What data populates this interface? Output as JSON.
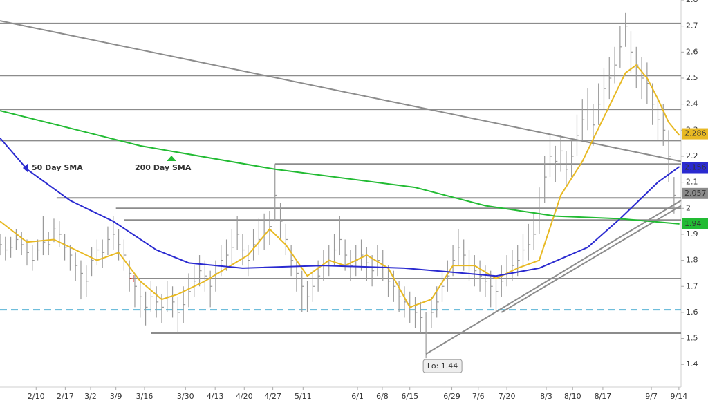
{
  "chart_data": {
    "type": "ohlc",
    "xlim": [
      0,
      126.3
    ],
    "ylim": [
      1.313,
      2.8
    ],
    "xticks": [
      {
        "value": 6.7,
        "label": "2/10"
      },
      {
        "value": 12.1,
        "label": "2/17"
      },
      {
        "value": 16.8,
        "label": "3/2"
      },
      {
        "value": 21.5,
        "label": "3/9"
      },
      {
        "value": 26.8,
        "label": "3/16"
      },
      {
        "value": 34.4,
        "label": "3/30"
      },
      {
        "value": 39.9,
        "label": "4/13"
      },
      {
        "value": 45.3,
        "label": "4/20"
      },
      {
        "value": 50.6,
        "label": "4/27"
      },
      {
        "value": 56.2,
        "label": "5/11"
      },
      {
        "value": 66.3,
        "label": "6/1"
      },
      {
        "value": 70.9,
        "label": "6/8"
      },
      {
        "value": 76,
        "label": "6/15"
      },
      {
        "value": 83.8,
        "label": "6/29"
      },
      {
        "value": 88.7,
        "label": "7/6"
      },
      {
        "value": 94,
        "label": "7/20"
      },
      {
        "value": 101.3,
        "label": "8/3"
      },
      {
        "value": 106.2,
        "label": "8/10"
      },
      {
        "value": 111.8,
        "label": "8/17"
      },
      {
        "value": 120.8,
        "label": "9/7"
      },
      {
        "value": 125.9,
        "label": "9/14"
      }
    ],
    "yticks": [
      1.4,
      1.5,
      1.6,
      1.7,
      1.8,
      1.9,
      2,
      2.1,
      2.2,
      2.3,
      2.4,
      2.5,
      2.6,
      2.7,
      2.8
    ],
    "ohlc": {
      "color": "#9a9a9a",
      "high": [
        1.9,
        1.89,
        1.89,
        1.92,
        1.91,
        1.88,
        1.86,
        1.88,
        1.97,
        1.91,
        1.96,
        1.95,
        1.9,
        1.86,
        1.83,
        1.8,
        1.78,
        1.85,
        1.88,
        1.88,
        1.93,
        1.97,
        1.92,
        1.88,
        1.8,
        1.75,
        1.72,
        1.68,
        1.72,
        1.7,
        1.67,
        1.72,
        1.7,
        1.66,
        1.7,
        1.75,
        1.78,
        1.82,
        1.8,
        1.76,
        1.8,
        1.86,
        1.88,
        1.92,
        1.97,
        1.9,
        1.86,
        1.92,
        1.96,
        1.98,
        1.99,
        2.17,
        2.02,
        1.94,
        1.86,
        1.8,
        1.76,
        1.72,
        1.76,
        1.8,
        1.84,
        1.86,
        1.9,
        1.97,
        1.88,
        1.84,
        1.86,
        1.88,
        1.85,
        1.82,
        1.86,
        1.84,
        1.78,
        1.76,
        1.72,
        1.7,
        1.68,
        1.66,
        1.64,
        1.6,
        1.66,
        1.7,
        1.76,
        1.8,
        1.86,
        1.92,
        1.88,
        1.84,
        1.82,
        1.8,
        1.78,
        1.76,
        1.74,
        1.78,
        1.82,
        1.84,
        1.86,
        1.9,
        1.94,
        1.98,
        2.08,
        2.2,
        2.28,
        2.24,
        2.28,
        2.22,
        2.26,
        2.36,
        2.42,
        2.46,
        2.4,
        2.48,
        2.54,
        2.58,
        2.62,
        2.7,
        2.75,
        2.68,
        2.62,
        2.58,
        2.56,
        2.48,
        2.42,
        2.4,
        2.3,
        2.12
      ],
      "low": [
        1.82,
        1.8,
        1.81,
        1.84,
        1.82,
        1.78,
        1.76,
        1.8,
        1.82,
        1.82,
        1.87,
        1.85,
        1.8,
        1.76,
        1.72,
        1.65,
        1.66,
        1.74,
        1.78,
        1.77,
        1.82,
        1.84,
        1.8,
        1.76,
        1.68,
        1.62,
        1.58,
        1.55,
        1.6,
        1.58,
        1.56,
        1.6,
        1.58,
        1.52,
        1.56,
        1.62,
        1.66,
        1.7,
        1.68,
        1.62,
        1.68,
        1.74,
        1.76,
        1.78,
        1.84,
        1.78,
        1.74,
        1.8,
        1.82,
        1.84,
        1.86,
        1.95,
        1.88,
        1.82,
        1.74,
        1.68,
        1.6,
        1.6,
        1.64,
        1.68,
        1.72,
        1.74,
        1.78,
        1.82,
        1.76,
        1.72,
        1.74,
        1.76,
        1.72,
        1.7,
        1.74,
        1.72,
        1.66,
        1.64,
        1.6,
        1.58,
        1.56,
        1.54,
        1.52,
        1.44,
        1.54,
        1.58,
        1.64,
        1.68,
        1.74,
        1.78,
        1.76,
        1.72,
        1.7,
        1.68,
        1.66,
        1.62,
        1.6,
        1.66,
        1.7,
        1.72,
        1.74,
        1.78,
        1.8,
        1.84,
        1.9,
        2.02,
        2.12,
        2.1,
        2.14,
        2.08,
        2.12,
        2.2,
        2.26,
        2.3,
        2.24,
        2.32,
        2.38,
        2.42,
        2.48,
        2.54,
        2.62,
        2.52,
        2.46,
        2.42,
        2.4,
        2.32,
        2.26,
        2.24,
        2.1,
        1.98
      ],
      "close": [
        1.86,
        1.84,
        1.85,
        1.88,
        1.86,
        1.83,
        1.8,
        1.84,
        1.87,
        1.86,
        1.92,
        1.9,
        1.85,
        1.82,
        1.78,
        1.75,
        1.72,
        1.8,
        1.84,
        1.83,
        1.88,
        1.9,
        1.86,
        1.82,
        1.75,
        1.7,
        1.66,
        1.62,
        1.66,
        1.64,
        1.62,
        1.66,
        1.64,
        1.6,
        1.63,
        1.68,
        1.72,
        1.76,
        1.74,
        1.7,
        1.75,
        1.8,
        1.82,
        1.85,
        1.9,
        1.84,
        1.8,
        1.86,
        1.88,
        1.9,
        1.93,
        2.05,
        1.95,
        1.88,
        1.8,
        1.75,
        1.7,
        1.66,
        1.7,
        1.74,
        1.78,
        1.8,
        1.84,
        1.88,
        1.82,
        1.78,
        1.8,
        1.82,
        1.79,
        1.76,
        1.8,
        1.78,
        1.72,
        1.7,
        1.66,
        1.64,
        1.62,
        1.6,
        1.58,
        1.52,
        1.6,
        1.64,
        1.7,
        1.74,
        1.8,
        1.85,
        1.82,
        1.78,
        1.76,
        1.74,
        1.72,
        1.7,
        1.68,
        1.72,
        1.75,
        1.78,
        1.8,
        1.84,
        1.86,
        1.9,
        1.98,
        2.12,
        2.2,
        2.18,
        2.22,
        2.15,
        2.2,
        2.28,
        2.34,
        2.38,
        2.32,
        2.4,
        2.46,
        2.5,
        2.55,
        2.62,
        2.7,
        2.6,
        2.55,
        2.5,
        2.48,
        2.4,
        2.34,
        2.3,
        2.2,
        2.05
      ]
    },
    "series": [
      {
        "color": "#e8b923",
        "x": [
          0,
          5,
          10,
          14,
          18,
          22,
          26,
          30,
          33,
          38,
          42,
          46,
          50,
          53,
          57,
          61,
          64,
          68,
          72,
          76,
          80,
          84,
          88,
          92,
          96,
          100,
          104,
          108,
          112,
          116,
          118,
          120,
          122,
          124,
          126
        ],
        "values": [
          1.95,
          1.87,
          1.88,
          1.84,
          1.8,
          1.83,
          1.72,
          1.65,
          1.67,
          1.72,
          1.77,
          1.82,
          1.92,
          1.86,
          1.74,
          1.8,
          1.78,
          1.82,
          1.77,
          1.62,
          1.65,
          1.78,
          1.78,
          1.73,
          1.77,
          1.8,
          2.05,
          2.18,
          2.35,
          2.52,
          2.55,
          2.5,
          2.42,
          2.33,
          2.28
        ]
      },
      {
        "name": "50 Day SMA",
        "color": "#2a2ad0",
        "x": [
          0,
          5,
          13,
          21,
          29,
          35,
          45,
          60,
          75,
          92,
          100,
          109,
          115,
          122,
          126
        ],
        "values": [
          2.27,
          2.15,
          2.03,
          1.95,
          1.84,
          1.79,
          1.77,
          1.78,
          1.77,
          1.74,
          1.77,
          1.85,
          1.96,
          2.1,
          2.16
        ]
      },
      {
        "name": "200 Day SMA",
        "color": "#22bb33",
        "x": [
          0,
          26,
          51,
          77,
          90,
          103,
          115,
          126
        ],
        "values": [
          2.375,
          2.24,
          2.15,
          2.08,
          2.01,
          1.97,
          1.96,
          1.94
        ]
      }
    ],
    "levels": [
      {
        "value": 2.71,
        "x_start": 0
      },
      {
        "value": 2.51,
        "x_start": 0
      },
      {
        "value": 2.38,
        "x_start": 0
      },
      {
        "value": 2.26,
        "x_start": 0
      },
      {
        "value": 2.17,
        "x_start": 51
      },
      {
        "value": 2.04,
        "x_start": 10.5
      },
      {
        "value": 2.0,
        "x_start": 21.5
      },
      {
        "value": 1.955,
        "x_start": 23
      },
      {
        "value": 1.73,
        "x_start": 24.4
      },
      {
        "value": 1.52,
        "x_start": 28
      }
    ],
    "dashed_level": {
      "value": 1.61,
      "color": "#5ab4d6"
    },
    "trendlines": [
      {
        "x": [
          0,
          126.3
        ],
        "values": [
          2.72,
          2.18
        ]
      },
      {
        "x": [
          79,
          126.3
        ],
        "values": [
          1.44,
          2.03
        ]
      },
      {
        "x": [
          93,
          126.3
        ],
        "values": [
          1.6,
          2.01
        ]
      }
    ],
    "price_labels": [
      {
        "value": 2.286,
        "color": "#e8b923",
        "text_color": "#000000"
      },
      {
        "value": 2.156,
        "color": "#2a2ad0",
        "text_color": "#ffffff"
      },
      {
        "value": 2.057,
        "color": "#8a8a8a",
        "text_color": "#ffffff"
      },
      {
        "value": 1.94,
        "color": "#22bb33",
        "text_color": "#000000"
      }
    ],
    "annotation": {
      "text": "Lo: 1.44",
      "x": 79,
      "y": 1.44
    }
  }
}
